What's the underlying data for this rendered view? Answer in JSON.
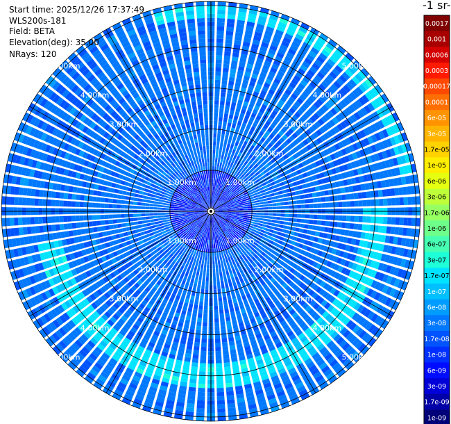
{
  "header": {
    "start_time": "Start time: 2025/12/26 17:37:49",
    "instrument": "WLS200s-181",
    "field": "Field: BETA",
    "elevation": "Elevation(deg): 35.00",
    "nrays": "NRays: 120"
  },
  "colorbar": {
    "title": "-1 sr-",
    "labels": [
      "0.0017",
      "0.001",
      "0.0006",
      "0.0003",
      "0.00017",
      "0.0001",
      "6e-05",
      "3e-05",
      "1.7e-05",
      "1e-05",
      "6e-06",
      "3e-06",
      "1.7e-06",
      "1e-06",
      "6e-07",
      "3e-07",
      "1.7e-07",
      "1e-07",
      "6e-08",
      "3e-08",
      "1.7e-08",
      "1e-08",
      "6e-09",
      "3e-09",
      "1.7e-09",
      "1e-09"
    ],
    "colors": [
      "#800000",
      "#a80000",
      "#d40000",
      "#ff1a00",
      "#ff4800",
      "#ff6e00",
      "#ff9400",
      "#ffb400",
      "#ffd200",
      "#ffee00",
      "#e6ff10",
      "#beff3a",
      "#96ff62",
      "#6eff8a",
      "#46ffb2",
      "#1effd8",
      "#00e4ff",
      "#00c0ff",
      "#009cff",
      "#0078ff",
      "#0054ff",
      "#0030ff",
      "#000cff",
      "#0000d8",
      "#0000a8",
      "#000078"
    ],
    "dark_text_indices": [
      8,
      9,
      10,
      11,
      12,
      13,
      14,
      15,
      16
    ]
  },
  "chart_data": {
    "type": "heatmap",
    "projection": "polar-ppi",
    "title": "",
    "nrays": 120,
    "gate_spacing_km": 0.1,
    "max_range_km": 5.1,
    "range_rings_km": [
      1.0,
      2.0,
      3.0,
      4.0,
      5.0
    ],
    "range_ring_labels": [
      "1.00km",
      "2.00km",
      "3.00km",
      "4.00km",
      "5.00km"
    ],
    "ring_label_bearings_deg": [
      45,
      135,
      225,
      315
    ],
    "radial_gridlines_deg": [
      0,
      30,
      60,
      90,
      120,
      150,
      180,
      210,
      240,
      270,
      300,
      330
    ],
    "colorscale": "jet-log",
    "range_min": 1e-09,
    "range_max": 0.0017,
    "typical_value_far": 3e-08,
    "typical_value_near_1km": 1e-08,
    "enhanced_bands": [
      {
        "range_km": [
          3.7,
          4.2
        ],
        "bearing_deg": [
          90,
          260
        ],
        "value": 1.7e-07
      },
      {
        "range_km": [
          4.65,
          4.95
        ],
        "bearing_deg": [
          345,
          80
        ],
        "value": 1.7e-07
      }
    ]
  }
}
